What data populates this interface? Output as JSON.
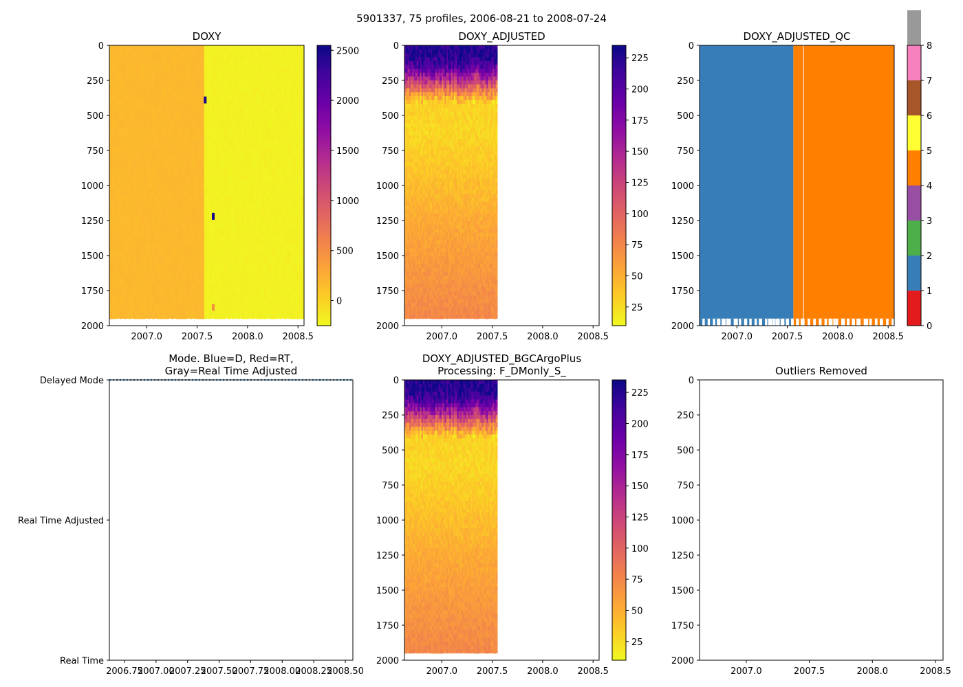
{
  "suptitle": "5901337, 75 profiles, 2006-08-21 to 2008-07-24",
  "chart_data": [
    {
      "id": "doxy",
      "type": "heatmap",
      "title": "DOXY",
      "colormap": "plasma_r",
      "xlim": [
        2006.63,
        2008.56
      ],
      "ylim": [
        2000,
        0
      ],
      "xticks": [
        2007.0,
        2007.5,
        2008.0,
        2008.5
      ],
      "xticklabels": [
        "2007.0",
        "2007.5",
        "2008.0",
        "2008.5"
      ],
      "yticks": [
        0,
        250,
        500,
        750,
        1000,
        1250,
        1500,
        1750,
        2000
      ],
      "yticklabels": [
        "0",
        "250",
        "500",
        "750",
        "1000",
        "1250",
        "1500",
        "1750",
        "2000"
      ],
      "data_x_range": [
        2006.63,
        2008.56
      ],
      "data_depth_max": 1950,
      "segments": [
        {
          "x": [
            2006.63,
            2007.57
          ],
          "value": 180
        },
        {
          "x": [
            2007.57,
            2008.56
          ],
          "value": -200
        }
      ],
      "spots": [
        {
          "x": 2007.66,
          "depth": 1220,
          "value": 2500
        },
        {
          "x": 2007.66,
          "depth": 1870,
          "value": 500
        },
        {
          "x": 2007.58,
          "depth": 390,
          "value": 2500
        }
      ],
      "colorbar": {
        "range": [
          -250,
          2550
        ],
        "ticks": [
          0,
          500,
          1000,
          1500,
          2000,
          2500
        ],
        "ticklabels": [
          "0",
          "500",
          "1000",
          "1500",
          "2000",
          "2500"
        ]
      }
    },
    {
      "id": "doxy_adjusted",
      "type": "heatmap",
      "title": "DOXY_ADJUSTED",
      "colormap": "plasma_r",
      "xlim": [
        2006.63,
        2008.56
      ],
      "ylim": [
        2000,
        0
      ],
      "xticks": [
        2007.0,
        2007.5,
        2008.0,
        2008.5
      ],
      "xticklabels": [
        "2007.0",
        "2007.5",
        "2008.0",
        "2008.5"
      ],
      "yticks": [
        0,
        250,
        500,
        750,
        1000,
        1250,
        1500,
        1750,
        2000
      ],
      "yticklabels": [
        "0",
        "250",
        "500",
        "750",
        "1000",
        "1250",
        "1500",
        "1750",
        "2000"
      ],
      "data_x_range": [
        2006.63,
        2007.55
      ],
      "data_depth_max": 1950,
      "depth_profile": [
        {
          "depth": 0,
          "value": 225
        },
        {
          "depth": 80,
          "value": 225
        },
        {
          "depth": 150,
          "value": 195
        },
        {
          "depth": 230,
          "value": 140
        },
        {
          "depth": 300,
          "value": 85
        },
        {
          "depth": 400,
          "value": 30
        },
        {
          "depth": 600,
          "value": 28
        },
        {
          "depth": 900,
          "value": 38
        },
        {
          "depth": 1300,
          "value": 55
        },
        {
          "depth": 1700,
          "value": 68
        },
        {
          "depth": 1950,
          "value": 75
        }
      ],
      "colorbar": {
        "range": [
          10,
          235
        ],
        "ticks": [
          25,
          50,
          75,
          100,
          125,
          150,
          175,
          200,
          225
        ],
        "ticklabels": [
          "25",
          "50",
          "75",
          "100",
          "125",
          "150",
          "175",
          "200",
          "225"
        ]
      }
    },
    {
      "id": "doxy_adjusted_qc",
      "type": "heatmap",
      "title": "DOXY_ADJUSTED_QC",
      "colormap": "Set1 (qualitative)",
      "xlim": [
        2006.63,
        2008.56
      ],
      "ylim": [
        2000,
        0
      ],
      "xticks": [
        2007.0,
        2007.5,
        2008.0,
        2008.5
      ],
      "xticklabels": [
        "2007.0",
        "2007.5",
        "2008.0",
        "2008.5"
      ],
      "yticks": [
        0,
        250,
        500,
        750,
        1000,
        1250,
        1500,
        1750,
        2000
      ],
      "yticklabels": [
        "0",
        "250",
        "500",
        "750",
        "1000",
        "1250",
        "1500",
        "1750",
        "2000"
      ],
      "data_depth_max": 1950,
      "segments": [
        {
          "x": [
            2006.63,
            2007.56
          ],
          "value": 1
        },
        {
          "x": [
            2007.56,
            2008.56
          ],
          "value": 4
        }
      ],
      "white_lines_x": [
        2007.66
      ],
      "colorbar": {
        "range": [
          0,
          8
        ],
        "ticks": [
          0,
          1,
          2,
          3,
          4,
          5,
          6,
          7,
          8
        ],
        "ticklabels": [
          "0",
          "1",
          "2",
          "3",
          "4",
          "5",
          "6",
          "7",
          "8"
        ],
        "colors": [
          "#e41a1c",
          "#377eb8",
          "#4daf4a",
          "#984ea3",
          "#ff7f00",
          "#ffff33",
          "#a65628",
          "#f781bf",
          "#999999"
        ]
      }
    },
    {
      "id": "mode",
      "type": "line",
      "title": "Mode. Blue=D, Red=RT,",
      "title_line2": "Gray=Real Time Adjusted",
      "xlim": [
        2006.63,
        2008.56
      ],
      "xticks": [
        2006.75,
        2007.0,
        2007.25,
        2007.5,
        2007.75,
        2008.0,
        2008.25,
        2008.5
      ],
      "xticklabels": [
        "2006.75",
        "2007.00",
        "2007.25",
        "2007.50",
        "2007.75",
        "2008.00",
        "2008.25",
        "2008.50"
      ],
      "ylim": [
        0,
        2
      ],
      "yticks": [
        2,
        1,
        0
      ],
      "yticklabels": [
        "Delayed Mode",
        "Real Time Adjusted",
        "Real Time"
      ],
      "series": [
        {
          "name": "Delayed Mode",
          "y": 2,
          "x_range": [
            2006.63,
            2008.56
          ],
          "color": "#1f77b4",
          "style": "dotted"
        }
      ]
    },
    {
      "id": "doxy_adjusted_bgc",
      "type": "heatmap",
      "title": "DOXY_ADJUSTED_BGCArgoPlus",
      "title_line2": "Processing: F_DMonly_S_",
      "colormap": "plasma_r",
      "xlim": [
        2006.63,
        2008.56
      ],
      "ylim": [
        2000,
        0
      ],
      "xticks": [
        2007.0,
        2007.5,
        2008.0,
        2008.5
      ],
      "xticklabels": [
        "2007.0",
        "2007.5",
        "2008.0",
        "2008.5"
      ],
      "yticks": [
        0,
        250,
        500,
        750,
        1000,
        1250,
        1500,
        1750,
        2000
      ],
      "yticklabels": [
        "0",
        "250",
        "500",
        "750",
        "1000",
        "1250",
        "1500",
        "1750",
        "2000"
      ],
      "data_x_range": [
        2006.63,
        2007.55
      ],
      "data_depth_max": 1950,
      "depth_profile": [
        {
          "depth": 0,
          "value": 225
        },
        {
          "depth": 80,
          "value": 225
        },
        {
          "depth": 150,
          "value": 195
        },
        {
          "depth": 230,
          "value": 140
        },
        {
          "depth": 300,
          "value": 85
        },
        {
          "depth": 400,
          "value": 30
        },
        {
          "depth": 600,
          "value": 28
        },
        {
          "depth": 900,
          "value": 38
        },
        {
          "depth": 1300,
          "value": 55
        },
        {
          "depth": 1700,
          "value": 68
        },
        {
          "depth": 1950,
          "value": 75
        }
      ],
      "colorbar": {
        "range": [
          10,
          235
        ],
        "ticks": [
          25,
          50,
          75,
          100,
          125,
          150,
          175,
          200,
          225
        ],
        "ticklabels": [
          "25",
          "50",
          "75",
          "100",
          "125",
          "150",
          "175",
          "200",
          "225"
        ]
      }
    },
    {
      "id": "outliers",
      "type": "scatter",
      "title": "Outliers Removed",
      "xlim": [
        2006.63,
        2008.56
      ],
      "ylim": [
        2000,
        0
      ],
      "xticks": [
        2007.0,
        2007.5,
        2008.0,
        2008.5
      ],
      "xticklabels": [
        "2007.0",
        "2007.5",
        "2008.0",
        "2008.5"
      ],
      "yticks": [
        0,
        250,
        500,
        750,
        1000,
        1250,
        1500,
        1750,
        2000
      ],
      "yticklabels": [
        "0",
        "250",
        "500",
        "750",
        "1000",
        "1250",
        "1500",
        "1750",
        "2000"
      ],
      "points": []
    }
  ]
}
